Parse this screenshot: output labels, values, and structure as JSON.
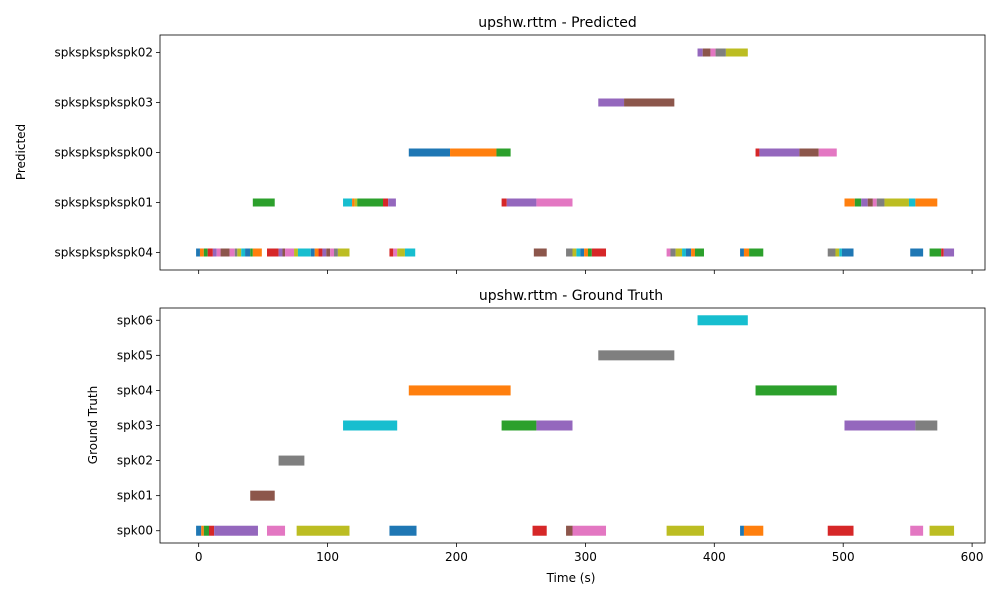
{
  "chart_data": [
    {
      "type": "timeline",
      "title": "upshw.rttm - Predicted",
      "xlabel": "",
      "ylabel": "Predicted",
      "xlim": [
        -30,
        610
      ],
      "xticks": [
        0,
        100,
        200,
        300,
        400,
        500,
        600
      ],
      "show_xtick_labels": false,
      "rows": [
        "spkspkspkspk04",
        "spkspkspkspk01",
        "spkspkspkspk00",
        "spkspkspkspk03",
        "spkspkspkspk02"
      ],
      "segments": [
        {
          "row": "spkspkspkspk02",
          "start": 387,
          "end": 391,
          "color": "#9467bd"
        },
        {
          "row": "spkspkspkspk02",
          "start": 391,
          "end": 397,
          "color": "#8c564b"
        },
        {
          "row": "spkspkspkspk02",
          "start": 397,
          "end": 401,
          "color": "#e377c2"
        },
        {
          "row": "spkspkspkspk02",
          "start": 401,
          "end": 409,
          "color": "#7f7f7f"
        },
        {
          "row": "spkspkspkspk02",
          "start": 409,
          "end": 426,
          "color": "#bcbd22"
        },
        {
          "row": "spkspkspkspk03",
          "start": 310,
          "end": 330,
          "color": "#9467bd"
        },
        {
          "row": "spkspkspkspk03",
          "start": 330,
          "end": 369,
          "color": "#8c564b"
        },
        {
          "row": "spkspkspkspk00",
          "start": 163,
          "end": 195,
          "color": "#1f77b4"
        },
        {
          "row": "spkspkspkspk00",
          "start": 195,
          "end": 231,
          "color": "#ff7f0e"
        },
        {
          "row": "spkspkspkspk00",
          "start": 231,
          "end": 242,
          "color": "#2ca02c"
        },
        {
          "row": "spkspkspkspk00",
          "start": 432,
          "end": 435,
          "color": "#d62728"
        },
        {
          "row": "spkspkspkspk00",
          "start": 435,
          "end": 466,
          "color": "#9467bd"
        },
        {
          "row": "spkspkspkspk00",
          "start": 466,
          "end": 481,
          "color": "#8c564b"
        },
        {
          "row": "spkspkspkspk00",
          "start": 481,
          "end": 495,
          "color": "#e377c2"
        },
        {
          "row": "spkspkspkspk01",
          "start": 42,
          "end": 59,
          "color": "#2ca02c"
        },
        {
          "row": "spkspkspkspk01",
          "start": 112,
          "end": 119,
          "color": "#17becf"
        },
        {
          "row": "spkspkspkspk01",
          "start": 119,
          "end": 121,
          "color": "#ff7f0e"
        },
        {
          "row": "spkspkspkspk01",
          "start": 121,
          "end": 123,
          "color": "#bcbd22"
        },
        {
          "row": "spkspkspkspk01",
          "start": 123,
          "end": 143,
          "color": "#2ca02c"
        },
        {
          "row": "spkspkspkspk01",
          "start": 143,
          "end": 147,
          "color": "#d62728"
        },
        {
          "row": "spkspkspkspk01",
          "start": 147,
          "end": 153,
          "color": "#9467bd"
        },
        {
          "row": "spkspkspkspk01",
          "start": 235,
          "end": 239,
          "color": "#d62728"
        },
        {
          "row": "spkspkspkspk01",
          "start": 239,
          "end": 262,
          "color": "#9467bd"
        },
        {
          "row": "spkspkspkspk01",
          "start": 262,
          "end": 290,
          "color": "#e377c2"
        },
        {
          "row": "spkspkspkspk01",
          "start": 501,
          "end": 509,
          "color": "#ff7f0e"
        },
        {
          "row": "spkspkspkspk01",
          "start": 509,
          "end": 514,
          "color": "#2ca02c"
        },
        {
          "row": "spkspkspkspk01",
          "start": 514,
          "end": 519,
          "color": "#9467bd"
        },
        {
          "row": "spkspkspkspk01",
          "start": 519,
          "end": 523,
          "color": "#8c564b"
        },
        {
          "row": "spkspkspkspk01",
          "start": 523,
          "end": 526,
          "color": "#e377c2"
        },
        {
          "row": "spkspkspkspk01",
          "start": 526,
          "end": 532,
          "color": "#7f7f7f"
        },
        {
          "row": "spkspkspkspk01",
          "start": 532,
          "end": 551,
          "color": "#bcbd22"
        },
        {
          "row": "spkspkspkspk01",
          "start": 551,
          "end": 556,
          "color": "#17becf"
        },
        {
          "row": "spkspkspkspk01",
          "start": 556,
          "end": 573,
          "color": "#ff7f0e"
        },
        {
          "row": "spkspkspkspk04",
          "start": -2,
          "end": 1,
          "color": "#1f77b4"
        },
        {
          "row": "spkspkspkspk04",
          "start": 1,
          "end": 4,
          "color": "#ff7f0e"
        },
        {
          "row": "spkspkspkspk04",
          "start": 4,
          "end": 7,
          "color": "#2ca02c"
        },
        {
          "row": "spkspkspkspk04",
          "start": 7,
          "end": 11,
          "color": "#d62728"
        },
        {
          "row": "spkspkspkspk04",
          "start": 11,
          "end": 14,
          "color": "#9467bd"
        },
        {
          "row": "spkspkspkspk04",
          "start": 14,
          "end": 17,
          "color": "#e377c2"
        },
        {
          "row": "spkspkspkspk04",
          "start": 17,
          "end": 24,
          "color": "#8c564b"
        },
        {
          "row": "spkspkspkspk04",
          "start": 24,
          "end": 28,
          "color": "#e377c2"
        },
        {
          "row": "spkspkspkspk04",
          "start": 28,
          "end": 30,
          "color": "#7f7f7f"
        },
        {
          "row": "spkspkspkspk04",
          "start": 30,
          "end": 33,
          "color": "#bcbd22"
        },
        {
          "row": "spkspkspkspk04",
          "start": 33,
          "end": 36,
          "color": "#17becf"
        },
        {
          "row": "spkspkspkspk04",
          "start": 36,
          "end": 40,
          "color": "#1f77b4"
        },
        {
          "row": "spkspkspkspk04",
          "start": 40,
          "end": 42,
          "color": "#2ca02c"
        },
        {
          "row": "spkspkspkspk04",
          "start": 42,
          "end": 49,
          "color": "#ff7f0e"
        },
        {
          "row": "spkspkspkspk04",
          "start": 53,
          "end": 62,
          "color": "#d62728"
        },
        {
          "row": "spkspkspkspk04",
          "start": 62,
          "end": 65,
          "color": "#9467bd"
        },
        {
          "row": "spkspkspkspk04",
          "start": 65,
          "end": 67,
          "color": "#8c564b"
        },
        {
          "row": "spkspkspkspk04",
          "start": 67,
          "end": 74,
          "color": "#e377c2"
        },
        {
          "row": "spkspkspkspk04",
          "start": 74,
          "end": 77,
          "color": "#bcbd22"
        },
        {
          "row": "spkspkspkspk04",
          "start": 77,
          "end": 87,
          "color": "#17becf"
        },
        {
          "row": "spkspkspkspk04",
          "start": 87,
          "end": 90,
          "color": "#1f77b4"
        },
        {
          "row": "spkspkspkspk04",
          "start": 90,
          "end": 93,
          "color": "#ff7f0e"
        },
        {
          "row": "spkspkspkspk04",
          "start": 93,
          "end": 96,
          "color": "#d62728"
        },
        {
          "row": "spkspkspkspk04",
          "start": 96,
          "end": 99,
          "color": "#9467bd"
        },
        {
          "row": "spkspkspkspk04",
          "start": 99,
          "end": 102,
          "color": "#8c564b"
        },
        {
          "row": "spkspkspkspk04",
          "start": 102,
          "end": 105,
          "color": "#e377c2"
        },
        {
          "row": "spkspkspkspk04",
          "start": 105,
          "end": 108,
          "color": "#7f7f7f"
        },
        {
          "row": "spkspkspkspk04",
          "start": 108,
          "end": 117,
          "color": "#bcbd22"
        },
        {
          "row": "spkspkspkspk04",
          "start": 148,
          "end": 151,
          "color": "#d62728"
        },
        {
          "row": "spkspkspkspk04",
          "start": 151,
          "end": 154,
          "color": "#e377c2"
        },
        {
          "row": "spkspkspkspk04",
          "start": 154,
          "end": 160,
          "color": "#bcbd22"
        },
        {
          "row": "spkspkspkspk04",
          "start": 160,
          "end": 168,
          "color": "#17becf"
        },
        {
          "row": "spkspkspkspk04",
          "start": 260,
          "end": 270,
          "color": "#8c564b"
        },
        {
          "row": "spkspkspkspk04",
          "start": 285,
          "end": 290,
          "color": "#7f7f7f"
        },
        {
          "row": "spkspkspkspk04",
          "start": 290,
          "end": 293,
          "color": "#bcbd22"
        },
        {
          "row": "spkspkspkspk04",
          "start": 293,
          "end": 296,
          "color": "#17becf"
        },
        {
          "row": "spkspkspkspk04",
          "start": 296,
          "end": 299,
          "color": "#1f77b4"
        },
        {
          "row": "spkspkspkspk04",
          "start": 299,
          "end": 302,
          "color": "#ff7f0e"
        },
        {
          "row": "spkspkspkspk04",
          "start": 302,
          "end": 305,
          "color": "#2ca02c"
        },
        {
          "row": "spkspkspkspk04",
          "start": 305,
          "end": 316,
          "color": "#d62728"
        },
        {
          "row": "spkspkspkspk04",
          "start": 363,
          "end": 366,
          "color": "#e377c2"
        },
        {
          "row": "spkspkspkspk04",
          "start": 366,
          "end": 370,
          "color": "#7f7f7f"
        },
        {
          "row": "spkspkspkspk04",
          "start": 370,
          "end": 375,
          "color": "#bcbd22"
        },
        {
          "row": "spkspkspkspk04",
          "start": 375,
          "end": 378,
          "color": "#17becf"
        },
        {
          "row": "spkspkspkspk04",
          "start": 378,
          "end": 382,
          "color": "#1f77b4"
        },
        {
          "row": "spkspkspkspk04",
          "start": 382,
          "end": 385,
          "color": "#ff7f0e"
        },
        {
          "row": "spkspkspkspk04",
          "start": 385,
          "end": 392,
          "color": "#2ca02c"
        },
        {
          "row": "spkspkspkspk04",
          "start": 420,
          "end": 423,
          "color": "#1f77b4"
        },
        {
          "row": "spkspkspkspk04",
          "start": 423,
          "end": 427,
          "color": "#ff7f0e"
        },
        {
          "row": "spkspkspkspk04",
          "start": 427,
          "end": 438,
          "color": "#2ca02c"
        },
        {
          "row": "spkspkspkspk04",
          "start": 488,
          "end": 494,
          "color": "#7f7f7f"
        },
        {
          "row": "spkspkspkspk04",
          "start": 494,
          "end": 497,
          "color": "#bcbd22"
        },
        {
          "row": "spkspkspkspk04",
          "start": 497,
          "end": 499,
          "color": "#17becf"
        },
        {
          "row": "spkspkspkspk04",
          "start": 499,
          "end": 508,
          "color": "#1f77b4"
        },
        {
          "row": "spkspkspkspk04",
          "start": 552,
          "end": 562,
          "color": "#1f77b4"
        },
        {
          "row": "spkspkspkspk04",
          "start": 567,
          "end": 576,
          "color": "#2ca02c"
        },
        {
          "row": "spkspkspkspk04",
          "start": 576,
          "end": 578,
          "color": "#d62728"
        },
        {
          "row": "spkspkspkspk04",
          "start": 578,
          "end": 586,
          "color": "#9467bd"
        }
      ]
    },
    {
      "type": "timeline",
      "title": "upshw.rttm - Ground Truth",
      "xlabel": "Time (s)",
      "ylabel": "Ground Truth",
      "xlim": [
        -30,
        610
      ],
      "xticks": [
        0,
        100,
        200,
        300,
        400,
        500,
        600
      ],
      "show_xtick_labels": true,
      "rows": [
        "spk00",
        "spk01",
        "spk02",
        "spk03",
        "spk04",
        "spk05",
        "spk06"
      ],
      "segments": [
        {
          "row": "spk06",
          "start": 387,
          "end": 426,
          "color": "#17becf"
        },
        {
          "row": "spk05",
          "start": 310,
          "end": 369,
          "color": "#7f7f7f"
        },
        {
          "row": "spk04",
          "start": 163,
          "end": 242,
          "color": "#ff7f0e"
        },
        {
          "row": "spk04",
          "start": 432,
          "end": 495,
          "color": "#2ca02c"
        },
        {
          "row": "spk03",
          "start": 112,
          "end": 154,
          "color": "#17becf"
        },
        {
          "row": "spk03",
          "start": 235,
          "end": 262,
          "color": "#2ca02c"
        },
        {
          "row": "spk03",
          "start": 262,
          "end": 290,
          "color": "#9467bd"
        },
        {
          "row": "spk03",
          "start": 501,
          "end": 556,
          "color": "#9467bd"
        },
        {
          "row": "spk03",
          "start": 556,
          "end": 573,
          "color": "#7f7f7f"
        },
        {
          "row": "spk02",
          "start": 62,
          "end": 82,
          "color": "#7f7f7f"
        },
        {
          "row": "spk01",
          "start": 40,
          "end": 59,
          "color": "#8c564b"
        },
        {
          "row": "spk00",
          "start": -2,
          "end": 2,
          "color": "#1f77b4"
        },
        {
          "row": "spk00",
          "start": 2,
          "end": 4,
          "color": "#ff7f0e"
        },
        {
          "row": "spk00",
          "start": 4,
          "end": 8,
          "color": "#2ca02c"
        },
        {
          "row": "spk00",
          "start": 8,
          "end": 12,
          "color": "#d62728"
        },
        {
          "row": "spk00",
          "start": 12,
          "end": 46,
          "color": "#9467bd"
        },
        {
          "row": "spk00",
          "start": 53,
          "end": 67,
          "color": "#e377c2"
        },
        {
          "row": "spk00",
          "start": 76,
          "end": 117,
          "color": "#bcbd22"
        },
        {
          "row": "spk00",
          "start": 148,
          "end": 169,
          "color": "#1f77b4"
        },
        {
          "row": "spk00",
          "start": 259,
          "end": 270,
          "color": "#d62728"
        },
        {
          "row": "spk00",
          "start": 285,
          "end": 290,
          "color": "#8c564b"
        },
        {
          "row": "spk00",
          "start": 290,
          "end": 316,
          "color": "#e377c2"
        },
        {
          "row": "spk00",
          "start": 363,
          "end": 392,
          "color": "#bcbd22"
        },
        {
          "row": "spk00",
          "start": 420,
          "end": 423,
          "color": "#1f77b4"
        },
        {
          "row": "spk00",
          "start": 423,
          "end": 438,
          "color": "#ff7f0e"
        },
        {
          "row": "spk00",
          "start": 488,
          "end": 508,
          "color": "#d62728"
        },
        {
          "row": "spk00",
          "start": 552,
          "end": 562,
          "color": "#e377c2"
        },
        {
          "row": "spk00",
          "start": 567,
          "end": 586,
          "color": "#bcbd22"
        }
      ]
    }
  ]
}
